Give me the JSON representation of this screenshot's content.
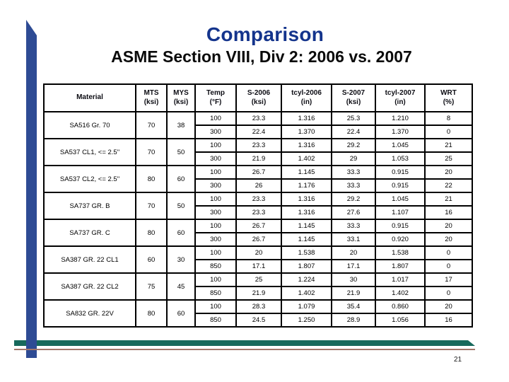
{
  "slide": {
    "title": "Comparison",
    "subtitle": "ASME Section VIII, Div 2: 2006 vs. 2007",
    "page_number": "21"
  },
  "colors": {
    "title_text": "#14348c",
    "subtitle_text": "#0a0a0a",
    "accent_bar_blue": "#2e4b94",
    "footer_bar_green": "#17695c",
    "footer_line_brown": "#a1756a",
    "table_border": "#000000",
    "table_text": "#000000"
  },
  "table": {
    "headers": [
      {
        "line1": "Material",
        "line2": ""
      },
      {
        "line1": "MTS",
        "line2": "(ksi)"
      },
      {
        "line1": "MYS",
        "line2": "(ksi)"
      },
      {
        "line1": "Temp",
        "line2": "(°F)"
      },
      {
        "line1": "S-2006",
        "line2": "(ksi)"
      },
      {
        "line1": "tcyl-2006",
        "line2": "(in)"
      },
      {
        "line1": "S-2007",
        "line2": "(ksi)"
      },
      {
        "line1": "tcyl-2007",
        "line2": "(in)"
      },
      {
        "line1": "WRT",
        "line2": "(%)"
      }
    ],
    "groups": [
      {
        "material": "SA516 Gr. 70",
        "mts": "70",
        "mys": "38",
        "rows": [
          [
            "100",
            "23.3",
            "1.316",
            "25.3",
            "1.210",
            "8"
          ],
          [
            "300",
            "22.4",
            "1.370",
            "22.4",
            "1.370",
            "0"
          ]
        ]
      },
      {
        "material": "SA537 CL1, <= 2.5\"",
        "mts": "70",
        "mys": "50",
        "rows": [
          [
            "100",
            "23.3",
            "1.316",
            "29.2",
            "1.045",
            "21"
          ],
          [
            "300",
            "21.9",
            "1.402",
            "29",
            "1.053",
            "25"
          ]
        ]
      },
      {
        "material": "SA537 CL2, <= 2.5\"",
        "mts": "80",
        "mys": "60",
        "rows": [
          [
            "100",
            "26.7",
            "1.145",
            "33.3",
            "0.915",
            "20"
          ],
          [
            "300",
            "26",
            "1.176",
            "33.3",
            "0.915",
            "22"
          ]
        ]
      },
      {
        "material": "SA737 GR. B",
        "mts": "70",
        "mys": "50",
        "rows": [
          [
            "100",
            "23.3",
            "1.316",
            "29.2",
            "1.045",
            "21"
          ],
          [
            "300",
            "23.3",
            "1.316",
            "27.6",
            "1.107",
            "16"
          ]
        ]
      },
      {
        "material": "SA737 GR. C",
        "mts": "80",
        "mys": "60",
        "rows": [
          [
            "100",
            "26.7",
            "1.145",
            "33.3",
            "0.915",
            "20"
          ],
          [
            "300",
            "26.7",
            "1.145",
            "33.1",
            "0.920",
            "20"
          ]
        ]
      },
      {
        "material": "SA387 GR. 22 CL1",
        "mts": "60",
        "mys": "30",
        "rows": [
          [
            "100",
            "20",
            "1.538",
            "20",
            "1.538",
            "0"
          ],
          [
            "850",
            "17.1",
            "1.807",
            "17.1",
            "1.807",
            "0"
          ]
        ]
      },
      {
        "material": "SA387 GR. 22 CL2",
        "mts": "75",
        "mys": "45",
        "rows": [
          [
            "100",
            "25",
            "1.224",
            "30",
            "1.017",
            "17"
          ],
          [
            "850",
            "21.9",
            "1.402",
            "21.9",
            "1.402",
            "0"
          ]
        ]
      },
      {
        "material": "SA832 GR. 22V",
        "mts": "80",
        "mys": "60",
        "rows": [
          [
            "100",
            "28.3",
            "1.079",
            "35.4",
            "0.860",
            "20"
          ],
          [
            "850",
            "24.5",
            "1.250",
            "28.9",
            "1.056",
            "16"
          ]
        ]
      }
    ]
  }
}
